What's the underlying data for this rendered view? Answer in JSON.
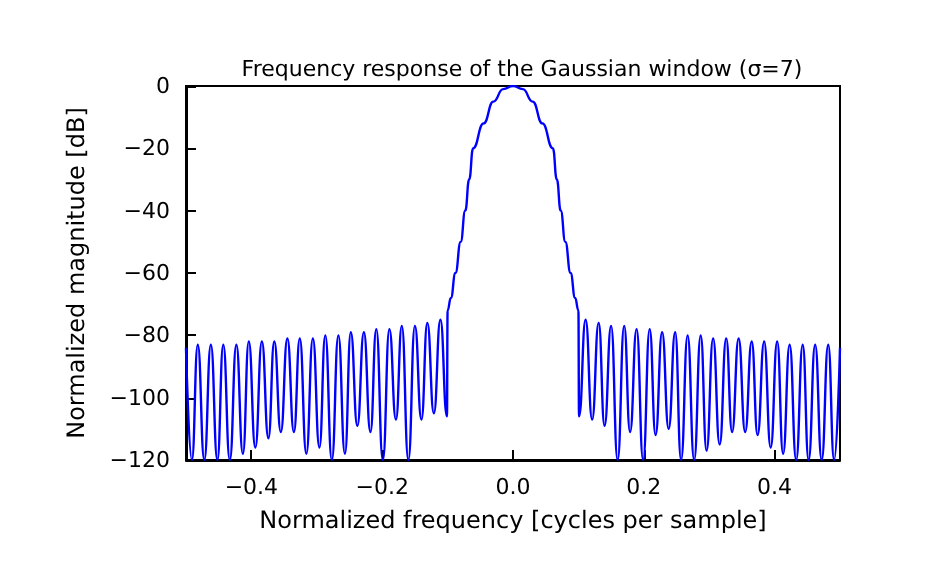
{
  "chart_data": {
    "type": "line",
    "title": "Frequency response of the Gaussian window (σ=7)",
    "xlabel": "Normalized frequency [cycles per sample]",
    "ylabel": "Normalized magnitude [dB]",
    "xlim": [
      -0.5,
      0.5
    ],
    "xticks": [
      {
        "value": -0.4,
        "label": "−0.4"
      },
      {
        "value": -0.2,
        "label": "−0.2"
      },
      {
        "value": 0,
        "label": "0.0"
      },
      {
        "value": 0.2,
        "label": "0.2"
      },
      {
        "value": 0.4,
        "label": "0.4"
      }
    ],
    "ylim": [
      -120,
      0
    ],
    "yticks": [
      {
        "value": -120,
        "label": "−120"
      },
      {
        "value": -100,
        "label": "−100"
      },
      {
        "value": -80,
        "label": "−80"
      },
      {
        "value": -60,
        "label": "−60"
      },
      {
        "value": -40,
        "label": "−40"
      },
      {
        "value": -20,
        "label": "−20"
      },
      {
        "value": 0,
        "label": "0"
      }
    ],
    "grid": false,
    "marker": "none",
    "line_style": "solid",
    "series": [
      {
        "color": "#0000ff",
        "x": [
          -0.5,
          -0.491,
          -0.482,
          -0.472,
          -0.462,
          -0.452,
          -0.443,
          -0.433,
          -0.423,
          -0.413,
          -0.404,
          -0.394,
          -0.384,
          -0.374,
          -0.365,
          -0.355,
          -0.345,
          -0.335,
          -0.326,
          -0.316,
          -0.306,
          -0.296,
          -0.287,
          -0.277,
          -0.267,
          -0.257,
          -0.248,
          -0.238,
          -0.228,
          -0.218,
          -0.209,
          -0.199,
          -0.189,
          -0.179,
          -0.17,
          -0.16,
          -0.15,
          -0.14,
          -0.131,
          -0.121,
          -0.111,
          -0.101,
          -0.1,
          -0.095,
          -0.088,
          -0.08,
          -0.073,
          -0.067,
          -0.061,
          -0.045,
          -0.03,
          -0.015,
          0,
          0.015,
          0.03,
          0.045,
          0.061,
          0.067,
          0.073,
          0.08,
          0.088,
          0.095,
          0.1,
          0.101,
          0.111,
          0.121,
          0.131,
          0.14,
          0.15,
          0.16,
          0.17,
          0.179,
          0.189,
          0.199,
          0.209,
          0.218,
          0.228,
          0.238,
          0.248,
          0.257,
          0.267,
          0.277,
          0.287,
          0.296,
          0.306,
          0.316,
          0.326,
          0.335,
          0.345,
          0.355,
          0.365,
          0.374,
          0.384,
          0.394,
          0.404,
          0.413,
          0.423,
          0.433,
          0.443,
          0.452,
          0.462,
          0.472,
          0.482,
          0.491,
          0.5
        ],
        "values": [
          -84,
          -120,
          -83,
          -120,
          -83,
          -120,
          -83,
          -120,
          -83,
          -118,
          -82,
          -116,
          -82,
          -113,
          -82,
          -111,
          -81,
          -111,
          -81,
          -118,
          -81,
          -116,
          -80,
          -120,
          -80,
          -118,
          -79,
          -109,
          -79,
          -111,
          -78,
          -120,
          -78,
          -107,
          -77,
          -120,
          -77,
          -107,
          -76,
          -105,
          -75,
          -106,
          -72,
          -68,
          -60,
          -50,
          -40,
          -30,
          -20,
          -12,
          -5,
          -1,
          0,
          -1,
          -5,
          -12,
          -20,
          -30,
          -40,
          -50,
          -60,
          -68,
          -72,
          -106,
          -75,
          -107,
          -76,
          -109,
          -77,
          -120,
          -77,
          -111,
          -78,
          -120,
          -78,
          -112,
          -79,
          -110,
          -79,
          -120,
          -80,
          -120,
          -80,
          -117,
          -81,
          -115,
          -81,
          -111,
          -81,
          -111,
          -82,
          -112,
          -82,
          -116,
          -82,
          -118,
          -83,
          -120,
          -83,
          -120,
          -83,
          -120,
          -83,
          -120,
          -84
        ]
      }
    ]
  }
}
